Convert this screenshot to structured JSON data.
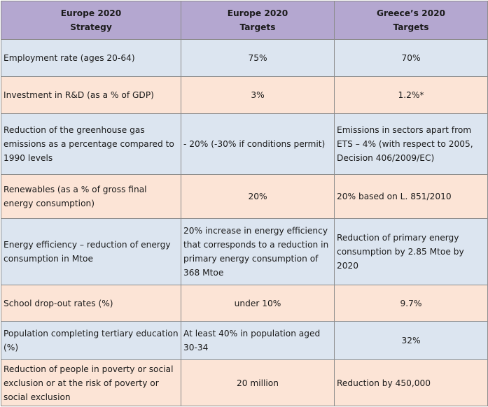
{
  "header": {
    "col1_line1": "Europe 2020",
    "col1_line2": "Strategy",
    "col2_line1": "Europe 2020",
    "col2_line2": "Targets",
    "col3_line1": "Greece’s 2020",
    "col3_line2": "Targets"
  },
  "rows": [
    {
      "strategy": "Employment rate (ages 20-64)",
      "eu_target": "75%",
      "greece_target": "70%"
    },
    {
      "strategy": "Investment in R&D (as a % of GDP)",
      "eu_target": "3%",
      "greece_target": "1.2%*"
    },
    {
      "strategy": "Reduction of the greenhouse gas emissions as a percentage compared to 1990 levels",
      "eu_target": "- 20% (-30% if conditions permit)",
      "greece_target": "Emissions in sectors apart from ETS – 4% (with respect to 2005, Decision 406/2009/EC)"
    },
    {
      "strategy": "Renewables (as a % of gross final energy consumption)",
      "eu_target": "20%",
      "greece_target": "20% based on L. 851/2010"
    },
    {
      "strategy": "Energy efficiency – reduction of energy consumption in Mtoe",
      "eu_target": "20% increase in energy efficiency that corresponds to a reduction in primary energy consumption of 368 Mtoe",
      "greece_target": "Reduction of primary energy consumption by 2.85 Mtoe by 2020"
    },
    {
      "strategy": "School drop-out rates (%)",
      "eu_target": "under 10%",
      "greece_target": "9.7%"
    },
    {
      "strategy": "Population completing tertiary education (%)",
      "eu_target": "At least 40% in population aged 30-34",
      "greece_target": "32%"
    },
    {
      "strategy": "Reduction of people in poverty or social exclusion or at the risk of poverty or social exclusion",
      "eu_target": "20 million",
      "greece_target": "Reduction by 450,000"
    }
  ],
  "colors": {
    "header_bg": "#b4a7d0",
    "blue_row_bg": "#dce5f0",
    "peach_row_bg": "#fce4d6",
    "border": "#8c8c8c"
  }
}
